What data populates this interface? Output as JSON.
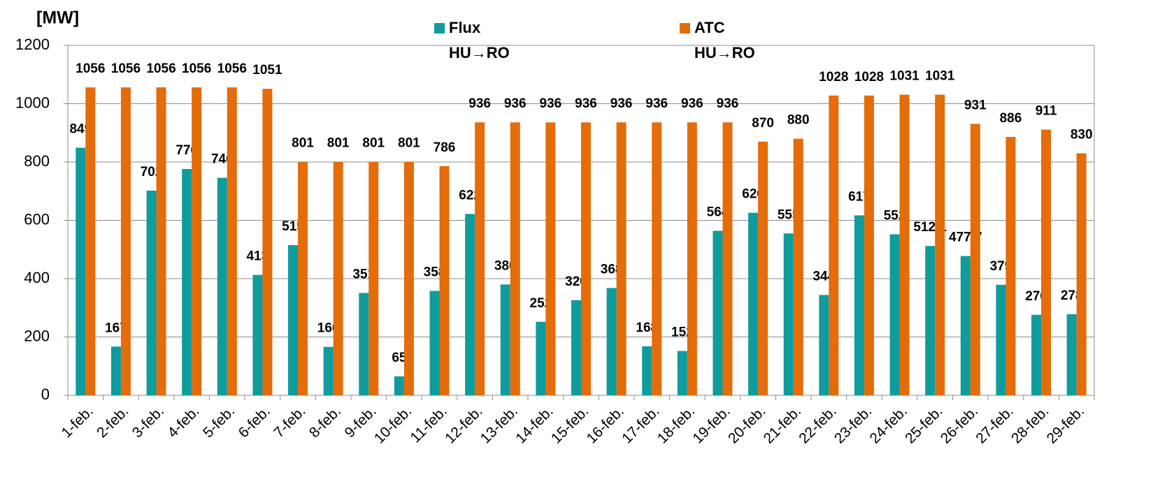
{
  "chart_data": {
    "type": "bar",
    "y_axis_label": "[MW]",
    "categories": [
      "1-feb.",
      "2-feb.",
      "3-feb.",
      "4-feb.",
      "5-feb.",
      "6-feb.",
      "7-feb.",
      "8-feb.",
      "9-feb.",
      "10-feb.",
      "11-feb.",
      "12-feb.",
      "13-feb.",
      "14-feb.",
      "15-feb.",
      "16-feb.",
      "17-feb.",
      "18-feb.",
      "19-feb.",
      "20-feb.",
      "21-feb.",
      "22-feb.",
      "23-feb.",
      "24-feb.",
      "25-feb.",
      "26-feb.",
      "27-feb.",
      "28-feb.",
      "29-feb."
    ],
    "series": [
      {
        "name": "Flux",
        "direction": "HU→RO",
        "color": "#0e9c9c",
        "values": [
          849,
          167,
          702,
          776,
          746,
          413,
          515,
          166,
          351,
          65,
          358,
          622,
          380,
          252,
          326,
          368,
          168,
          152,
          564,
          626,
          555,
          344,
          617,
          552,
          512.1,
          477.7,
          379,
          276,
          278
        ],
        "value_labels": [
          "849",
          "167",
          "702",
          "776",
          "746",
          "413",
          "515",
          "166",
          "351",
          "65",
          "358",
          "622",
          "380",
          "252",
          "326",
          "368",
          "168",
          "152",
          "564",
          "626",
          "555",
          "344",
          "617",
          "552",
          "512,1",
          "477,7",
          "379",
          "276",
          "278"
        ]
      },
      {
        "name": "ATC",
        "direction": "HU→RO",
        "color": "#e46c0a",
        "values": [
          1056,
          1056,
          1056,
          1056,
          1056,
          1051,
          801,
          801,
          801,
          801,
          786,
          936,
          936,
          936,
          936,
          936,
          936,
          936,
          936,
          870,
          880,
          1028,
          1028,
          1031,
          1031,
          931,
          886,
          911,
          830
        ]
      }
    ],
    "ylim": [
      0,
      1200
    ],
    "yticks": [
      0,
      200,
      400,
      600,
      800,
      1000,
      1200
    ],
    "grid": true
  }
}
